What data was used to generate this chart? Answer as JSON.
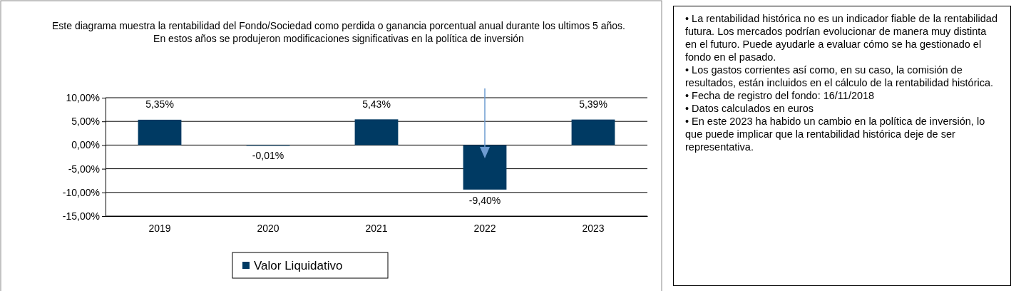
{
  "chart_data": {
    "type": "bar",
    "title": "Este diagrama  muestra la rentabilidad  del Fondo/Sociedad como perdida  o ganancia  porcentual anual durante los ultimos 5 años.",
    "subtitle": "En estos años se produjeron  modificaciones significativas en la política de inversión",
    "categories": [
      "2019",
      "2020",
      "2021",
      "2022",
      "2023"
    ],
    "series": [
      {
        "name": "Valor Liquidativo",
        "color": "#003a63",
        "values": [
          5.35,
          -0.01,
          5.43,
          -9.4,
          5.39
        ],
        "value_labels": [
          "5,35%",
          "-0,01%",
          "5,43%",
          "-9,40%",
          "5,39%"
        ]
      }
    ],
    "ylim": [
      -15,
      10
    ],
    "yticks": [
      {
        "value": -15,
        "label": "-15,00%"
      },
      {
        "value": -10,
        "label": "-10,00%"
      },
      {
        "value": -5,
        "label": "-5,00%"
      },
      {
        "value": 0,
        "label": "0,00%"
      },
      {
        "value": 5,
        "label": "5,00%"
      },
      {
        "value": 10,
        "label": "10,00%"
      }
    ],
    "grid": "y",
    "legend": "bottom",
    "annotations": [
      "• La rentabilidad  histórica no es un indicador  fiable de la rentabilidad  futura. Los mercados podrían evolucionar de manera  muy distinta en el futuro. Puede  ayudarle a evaluar cómo se ha gestionado el fondo en el pasado.",
      "• Los gastos corrientes así como, en su caso, la comisión de resultados, están incluidos en el cálculo de la rentabilidad  histórica.",
      "• Fecha de registro del fondo: 16/11/2018",
      "• Datos calculados en euros",
      "• En este 2023 ha habido  un cambio en la política de inversión, lo que  puede implicar que la rentabilidad  histórica deje de ser representativa."
    ]
  }
}
